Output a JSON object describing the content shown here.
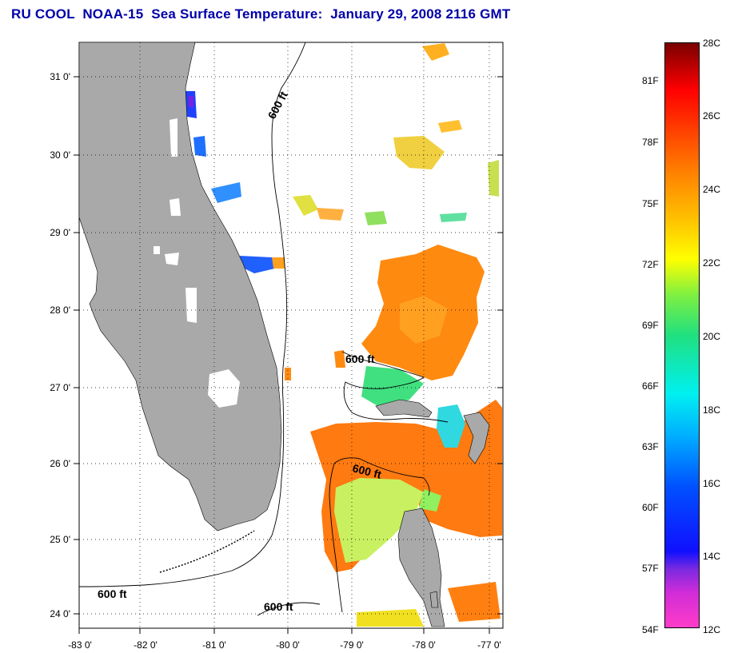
{
  "title": "RU COOL  NOAA-15  Sea Surface Temperature:  January 29, 2008 2116 GMT",
  "axes": {
    "lat_labels": [
      "31 0'",
      "30 0'",
      "29 0'",
      "28 0'",
      "27 0'",
      "26 0'",
      "25 0'",
      "24 0'"
    ],
    "lon_labels": [
      "-83 0'",
      "-82 0'",
      "-81 0'",
      "-80 0'",
      "-79 0'",
      "-78 0'",
      "-77 0'"
    ]
  },
  "isobath_labels": [
    "600 ft",
    "600 ft",
    "600 ft",
    "600 ft",
    "600 ft"
  ],
  "colorbar": {
    "celsius_labels": [
      "28C",
      "26C",
      "24C",
      "22C",
      "20C",
      "18C",
      "16C",
      "14C",
      "12C"
    ],
    "fahrenheit_labels": [
      "81F",
      "78F",
      "75F",
      "72F",
      "69F",
      "66F",
      "63F",
      "60F",
      "57F",
      "54F"
    ]
  },
  "colors": {
    "land": "#a9a9a9",
    "title": "#0000a8",
    "sst_warm": "#ff8000",
    "sst_mid": "#c8f060",
    "sst_cool": "#0050ff"
  }
}
